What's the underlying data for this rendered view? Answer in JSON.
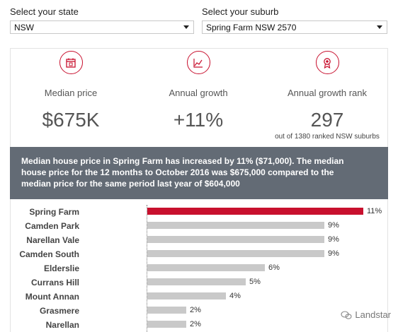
{
  "state_select": {
    "label": "Select your state",
    "value": "NSW"
  },
  "suburb_select": {
    "label": "Select your suburb",
    "value": "Spring Farm NSW 2570"
  },
  "stats": {
    "median": {
      "label": "Median price",
      "value": "$675K"
    },
    "growth": {
      "label": "Annual growth",
      "value": "+11%"
    },
    "rank": {
      "label": "Annual growth rank",
      "value": "297",
      "sub": "out of 1380 ranked NSW suburbs"
    }
  },
  "banner": {
    "line1": "Median house price in Spring Farm has increased by 11% ($71,000).  The median",
    "line2": "house price for the 12 months to October 2016 was $675,000 compared to the",
    "line3": "median price for the same period last year of $604,000"
  },
  "accent_color": "#c8102e",
  "chart_data": {
    "type": "bar",
    "orientation": "horizontal",
    "categories": [
      "Spring Farm",
      "Camden Park",
      "Narellan Vale",
      "Camden South",
      "Elderslie",
      "Currans Hill",
      "Mount Annan",
      "Grasmere",
      "Narellan"
    ],
    "values": [
      11,
      9,
      9,
      9,
      6,
      5,
      4,
      2,
      2
    ],
    "value_labels": [
      "11%",
      "9%",
      "9%",
      "9%",
      "6%",
      "5%",
      "4%",
      "2%",
      "2%"
    ],
    "highlight": "Spring Farm",
    "xlim": [
      0,
      11
    ]
  },
  "watermark": {
    "text": "Landstar"
  }
}
